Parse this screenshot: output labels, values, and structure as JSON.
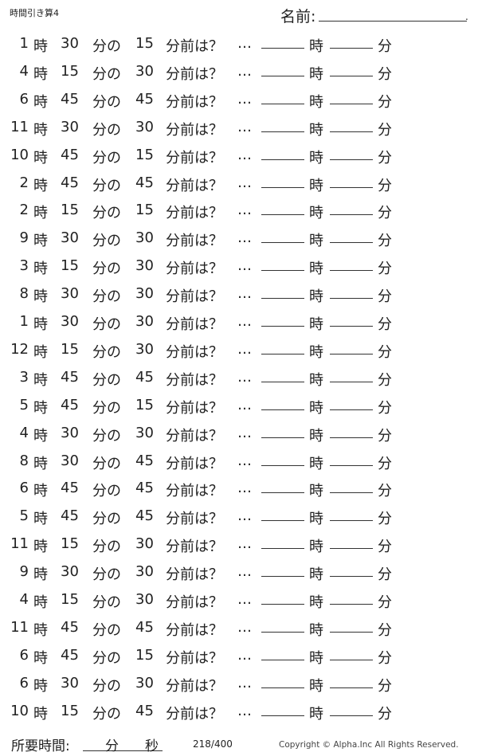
{
  "header": {
    "title": "時間引き算4",
    "name_label": "名前:",
    "name_dot": "."
  },
  "labels": {
    "hour": "時",
    "minute_of": "分の",
    "minutes_before": "分前は？",
    "ellipsis": "…",
    "answer_hour": "時",
    "answer_minute": "分"
  },
  "problems": [
    {
      "hour": "1",
      "minute": "30",
      "subtract": "15"
    },
    {
      "hour": "4",
      "minute": "15",
      "subtract": "30"
    },
    {
      "hour": "6",
      "minute": "45",
      "subtract": "45"
    },
    {
      "hour": "11",
      "minute": "30",
      "subtract": "30"
    },
    {
      "hour": "10",
      "minute": "45",
      "subtract": "15"
    },
    {
      "hour": "2",
      "minute": "45",
      "subtract": "45"
    },
    {
      "hour": "2",
      "minute": "15",
      "subtract": "15"
    },
    {
      "hour": "9",
      "minute": "30",
      "subtract": "30"
    },
    {
      "hour": "3",
      "minute": "15",
      "subtract": "30"
    },
    {
      "hour": "8",
      "minute": "30",
      "subtract": "30"
    },
    {
      "hour": "1",
      "minute": "30",
      "subtract": "30"
    },
    {
      "hour": "12",
      "minute": "15",
      "subtract": "30"
    },
    {
      "hour": "3",
      "minute": "45",
      "subtract": "45"
    },
    {
      "hour": "5",
      "minute": "45",
      "subtract": "15"
    },
    {
      "hour": "4",
      "minute": "30",
      "subtract": "30"
    },
    {
      "hour": "8",
      "minute": "30",
      "subtract": "45"
    },
    {
      "hour": "6",
      "minute": "45",
      "subtract": "45"
    },
    {
      "hour": "5",
      "minute": "45",
      "subtract": "45"
    },
    {
      "hour": "11",
      "minute": "15",
      "subtract": "30"
    },
    {
      "hour": "9",
      "minute": "30",
      "subtract": "30"
    },
    {
      "hour": "4",
      "minute": "15",
      "subtract": "30"
    },
    {
      "hour": "11",
      "minute": "45",
      "subtract": "45"
    },
    {
      "hour": "6",
      "minute": "45",
      "subtract": "15"
    },
    {
      "hour": "6",
      "minute": "30",
      "subtract": "30"
    },
    {
      "hour": "10",
      "minute": "15",
      "subtract": "45"
    }
  ],
  "footer": {
    "time_label": "所要時間:",
    "minute": "分",
    "second": "秒",
    "page": "218/400",
    "copyright": "Copyright ©  Alpha.Inc All Rights Reserved."
  }
}
